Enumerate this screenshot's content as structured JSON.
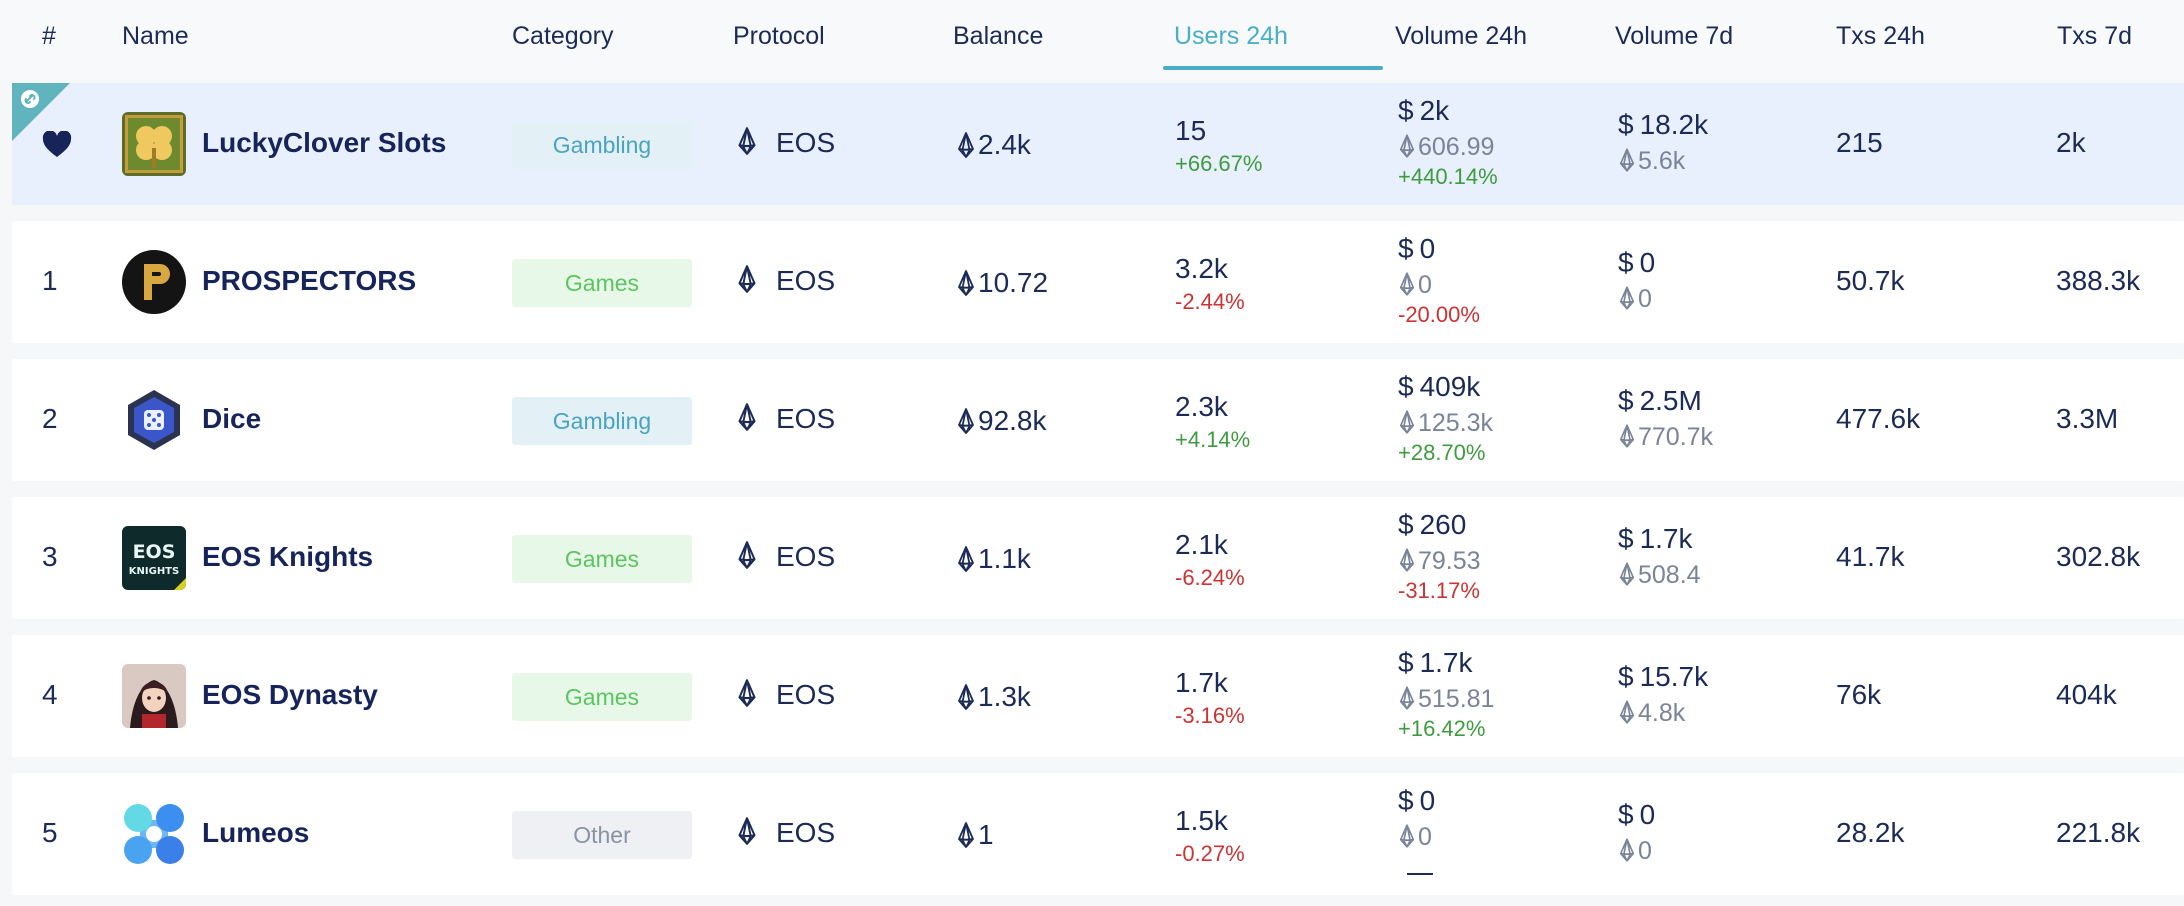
{
  "header": {
    "rank": "#",
    "name": "Name",
    "category": "Category",
    "protocol": "Protocol",
    "balance": "Balance",
    "users24": "Users 24h",
    "volume24": "Volume 24h",
    "volume7": "Volume 7d",
    "txs24": "Txs 24h",
    "txs7": "Txs 7d"
  },
  "colors": {
    "accent": "#49aec4",
    "featured_bg": "#e8effd",
    "positive": "#3e9c3e",
    "negative": "#cc3333"
  },
  "rows": [
    {
      "rank": "",
      "featured": true,
      "icon": "heart-icon",
      "name": "LuckyClover Slots",
      "category": "Gambling",
      "category_type": "gambling",
      "protocol": "EOS",
      "balance": "2.4k",
      "users": "15",
      "users_change": "+66.67%",
      "vol24_usd": "2k",
      "vol24_eos": "606.99",
      "vol24_change": "+440.14%",
      "vol7_usd": "18.2k",
      "vol7_eos": "5.6k",
      "txs24": "215",
      "txs7": "2k"
    },
    {
      "rank": "1",
      "name": "PROSPECTORS",
      "category": "Games",
      "category_type": "games",
      "protocol": "EOS",
      "balance": "10.72",
      "users": "3.2k",
      "users_change": "-2.44%",
      "vol24_usd": "0",
      "vol24_eos": "0",
      "vol24_change": "-20.00%",
      "vol7_usd": "0",
      "vol7_eos": "0",
      "txs24": "50.7k",
      "txs7": "388.3k"
    },
    {
      "rank": "2",
      "name": "Dice",
      "category": "Gambling",
      "category_type": "gambling",
      "protocol": "EOS",
      "balance": "92.8k",
      "users": "2.3k",
      "users_change": "+4.14%",
      "vol24_usd": "409k",
      "vol24_eos": "125.3k",
      "vol24_change": "+28.70%",
      "vol7_usd": "2.5M",
      "vol7_eos": "770.7k",
      "txs24": "477.6k",
      "txs7": "3.3M"
    },
    {
      "rank": "3",
      "name": "EOS Knights",
      "category": "Games",
      "category_type": "games",
      "protocol": "EOS",
      "balance": "1.1k",
      "users": "2.1k",
      "users_change": "-6.24%",
      "vol24_usd": "260",
      "vol24_eos": "79.53",
      "vol24_change": "-31.17%",
      "vol7_usd": "1.7k",
      "vol7_eos": "508.4",
      "txs24": "41.7k",
      "txs7": "302.8k",
      "logo_text_1": "EOS",
      "logo_text_2": "KNIGHTS"
    },
    {
      "rank": "4",
      "name": "EOS Dynasty",
      "category": "Games",
      "category_type": "games",
      "protocol": "EOS",
      "balance": "1.3k",
      "users": "1.7k",
      "users_change": "-3.16%",
      "vol24_usd": "1.7k",
      "vol24_eos": "515.81",
      "vol24_change": "+16.42%",
      "vol7_usd": "15.7k",
      "vol7_eos": "4.8k",
      "txs24": "76k",
      "txs7": "404k"
    },
    {
      "rank": "5",
      "name": "Lumeos",
      "category": "Other",
      "category_type": "other",
      "protocol": "EOS",
      "balance": "1",
      "users": "1.5k",
      "users_change": "-0.27%",
      "vol24_usd": "0",
      "vol24_eos": "0",
      "vol24_change": "",
      "vol7_usd": "0",
      "vol7_eos": "0",
      "txs24": "28.2k",
      "txs7": "221.8k"
    }
  ]
}
